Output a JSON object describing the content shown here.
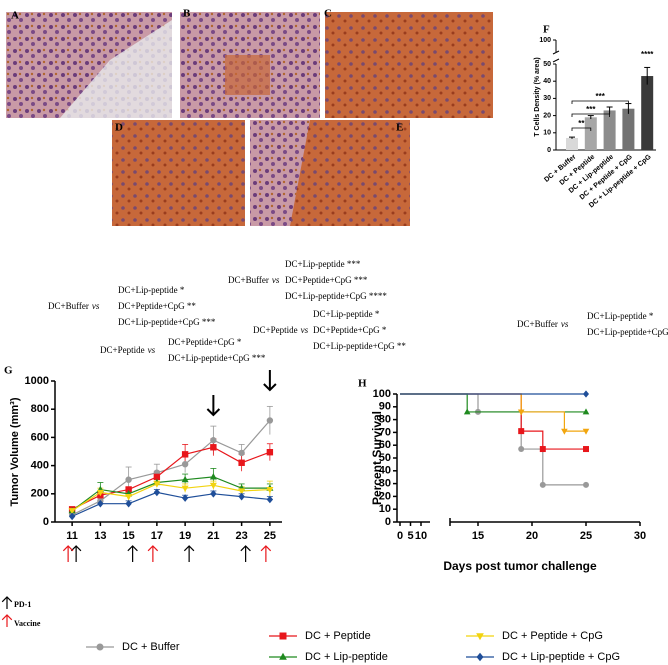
{
  "image_panels": [
    "A",
    "B",
    "C",
    "D",
    "E"
  ],
  "stat_annotations": [
    {
      "group": "DC+Buffer",
      "vs": "vs",
      "items": [
        "DC+Lip-peptide *",
        "DC+Peptide+CpG **",
        "DC+Lip-peptide+CpG ***"
      ]
    },
    {
      "group": "DC+Peptide",
      "vs": "vs",
      "items": [
        "DC+Peptide+CpG *",
        "DC+Lip-peptide+CpG ***"
      ]
    },
    {
      "group": "DC+Buffer",
      "vs": "vs",
      "items": [
        "DC+Lip-peptide ***",
        "DC+Peptide+CpG ***",
        "DC+Lip-peptide+CpG ****"
      ]
    },
    {
      "group": "DC+Peptide",
      "vs": "vs",
      "items": [
        "DC+Lip-peptide *",
        "DC+Peptide+CpG *",
        "DC+Lip-peptide+CpG **"
      ]
    },
    {
      "group": "DC+Buffer",
      "vs": "vs",
      "items": [
        "DC+Lip-peptide *",
        "DC+Lip-peptide+CpG **"
      ]
    }
  ],
  "chart_data": [
    {
      "type": "bar",
      "panel": "F",
      "ylabel": "T Cells Density (% area)",
      "categories": [
        "DC + Buffer",
        "DC + Peptide",
        "DC + Lip-peptide",
        "DC + Peptide + CpG",
        "DC + Lip-peptide + CpG"
      ],
      "values": [
        7,
        19,
        23,
        24,
        43
      ],
      "errors": [
        0.5,
        1,
        2,
        3,
        5
      ],
      "colors": [
        "#d9d9d9",
        "#a6a6a6",
        "#8c8c8c",
        "#737373",
        "#3a3a3a"
      ],
      "ylim": [
        0,
        100
      ],
      "yticks": [
        0,
        10,
        20,
        30,
        40,
        50,
        100
      ],
      "significance": [
        {
          "from": 0,
          "to": 1,
          "label": "**"
        },
        {
          "from": 0,
          "to": 2,
          "label": "***"
        },
        {
          "from": 0,
          "to": 3,
          "label": "***"
        },
        {
          "from": 4,
          "to": 4,
          "label": "****"
        }
      ]
    },
    {
      "type": "line",
      "panel": "G",
      "ylabel": "Tumor Volume (mm³)",
      "x": [
        11,
        13,
        15,
        17,
        19,
        21,
        23,
        25
      ],
      "xlim": [
        10,
        26
      ],
      "xticks": [
        11,
        13,
        15,
        17,
        19,
        21,
        23,
        25
      ],
      "ylim": [
        0,
        1000
      ],
      "yticks": [
        0,
        200,
        400,
        600,
        800,
        1000
      ],
      "highlight_days": [
        21,
        25
      ],
      "pd1_days": [
        11,
        15,
        19,
        23
      ],
      "vaccine_days": [
        11,
        17,
        25
      ],
      "pd1_label": "PD-1",
      "vaccine_label": "Vaccine",
      "series": [
        {
          "name": "DC + Buffer",
          "color": "#999999",
          "marker": "circle",
          "values": [
            50,
            150,
            300,
            350,
            410,
            580,
            490,
            720
          ],
          "errors": [
            10,
            30,
            90,
            60,
            60,
            100,
            60,
            100
          ]
        },
        {
          "name": "DC + Peptide",
          "color": "#e8161b",
          "marker": "square",
          "values": [
            90,
            190,
            230,
            320,
            480,
            530,
            420,
            495
          ],
          "errors": [
            10,
            20,
            20,
            40,
            70,
            60,
            60,
            60
          ]
        },
        {
          "name": "DC + Lip-peptide",
          "color": "#1f8a1f",
          "marker": "triangle-up",
          "values": [
            80,
            230,
            200,
            280,
            300,
            320,
            240,
            240
          ],
          "errors": [
            10,
            50,
            30,
            30,
            40,
            60,
            30,
            30
          ]
        },
        {
          "name": "DC + Peptide + CpG",
          "color": "#f2d30f",
          "marker": "triangle-down",
          "values": [
            80,
            210,
            180,
            270,
            240,
            260,
            220,
            230
          ],
          "errors": [
            10,
            30,
            30,
            20,
            30,
            30,
            30,
            60
          ]
        },
        {
          "name": "DC + Lip-peptide + CpG",
          "color": "#1f4e99",
          "marker": "diamond",
          "values": [
            40,
            130,
            130,
            210,
            170,
            200,
            180,
            160
          ],
          "errors": [
            10,
            20,
            20,
            20,
            20,
            20,
            20,
            20
          ]
        }
      ]
    },
    {
      "type": "step",
      "panel": "H",
      "ylabel": "Percent Survival",
      "xlabel": "Days post tumor challenge",
      "xlim": [
        0,
        30
      ],
      "xticks": [
        0,
        5,
        10,
        15,
        20,
        25,
        30
      ],
      "ylim": [
        0,
        100
      ],
      "yticks": [
        0,
        10,
        20,
        30,
        40,
        50,
        60,
        70,
        80,
        90,
        100
      ],
      "series": [
        {
          "color": "#999999",
          "marker": "circle",
          "x": [
            0,
            15,
            19,
            21,
            25
          ],
          "values": [
            100,
            86,
            57,
            29,
            29
          ]
        },
        {
          "color": "#e8161b",
          "marker": "square",
          "x": [
            0,
            19,
            21,
            25
          ],
          "values": [
            100,
            71,
            57,
            57
          ]
        },
        {
          "color": "#1f8a1f",
          "marker": "triangle-up",
          "x": [
            0,
            14,
            25
          ],
          "values": [
            100,
            86,
            86
          ]
        },
        {
          "color": "#f2a60f",
          "marker": "triangle-down",
          "x": [
            0,
            19,
            23,
            25
          ],
          "values": [
            100,
            86,
            71,
            71
          ]
        },
        {
          "color": "#1f4e99",
          "marker": "diamond",
          "x": [
            0,
            25
          ],
          "values": [
            100,
            100
          ]
        }
      ]
    }
  ]
}
